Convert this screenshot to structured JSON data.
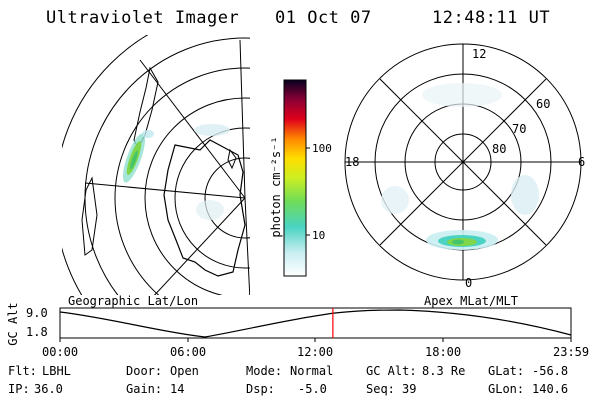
{
  "header": {
    "title": "Ultraviolet Imager",
    "date": "01 Oct 07",
    "time": "12:48:11 UT"
  },
  "colorbar": {
    "unit_label": "photon cm⁻²s⁻¹",
    "ticks": [
      "100",
      "10"
    ]
  },
  "panels": {
    "left_label": "Geographic Lat/Lon",
    "right_label": "Apex MLat/MLT"
  },
  "polar_plot": {
    "mlt_labels": {
      "top": "12",
      "right": "6",
      "bottom": "0",
      "left": "18"
    },
    "lat_labels": [
      "60",
      "70",
      "80"
    ]
  },
  "timeline": {
    "ylabel": "GC Alt",
    "ymax": "9.0",
    "ymin": "1.8",
    "xticks": [
      "00:00",
      "06:00",
      "12:00",
      "18:00",
      "23:59"
    ],
    "current_time_fraction": 0.534,
    "marker_color": "#ff0000"
  },
  "info": {
    "row1": [
      {
        "label": "Flt:",
        "value": "LBHL"
      },
      {
        "label": "Door:",
        "value": "Open"
      },
      {
        "label": "Mode:",
        "value": "Normal"
      },
      {
        "label": "GC Alt:",
        "value": "8.3 Re"
      },
      {
        "label": "GLat:",
        "value": "-56.8"
      }
    ],
    "row2": [
      {
        "label": "IP:",
        "value": "36.0"
      },
      {
        "label": "Gain:",
        "value": "14"
      },
      {
        "label": "Dsp:",
        "value": "-5.0"
      },
      {
        "label": "Seq:",
        "value": "39"
      },
      {
        "label": "GLon:",
        "value": "140.6"
      }
    ]
  }
}
